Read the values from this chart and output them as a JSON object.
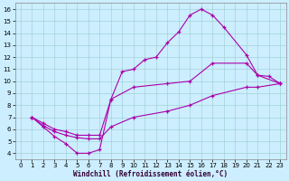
{
  "xlabel": "Windchill (Refroidissement éolien,°C)",
  "bg_color": "#cceeff",
  "line_color": "#aa00aa",
  "xlim": [
    -0.5,
    23.5
  ],
  "ylim": [
    3.5,
    16.5
  ],
  "xticks": [
    0,
    1,
    2,
    3,
    4,
    5,
    6,
    7,
    8,
    9,
    10,
    11,
    12,
    13,
    14,
    15,
    16,
    17,
    18,
    19,
    20,
    21,
    22,
    23
  ],
  "yticks": [
    4,
    5,
    6,
    7,
    8,
    9,
    10,
    11,
    12,
    13,
    14,
    15,
    16
  ],
  "line1_x": [
    1,
    2,
    3,
    4,
    5,
    6,
    7,
    8,
    9,
    10,
    11,
    12,
    13,
    14,
    15,
    16,
    17,
    18,
    20,
    21,
    22,
    23
  ],
  "line1_y": [
    7.0,
    6.2,
    5.4,
    4.8,
    4.0,
    4.0,
    4.3,
    8.5,
    10.8,
    11.0,
    11.8,
    12.0,
    13.2,
    14.1,
    15.5,
    16.0,
    15.5,
    14.5,
    12.2,
    10.5,
    10.4,
    9.8
  ],
  "line2_x": [
    1,
    2,
    3,
    4,
    5,
    6,
    7,
    8,
    10,
    13,
    15,
    17,
    20,
    21,
    23
  ],
  "line2_y": [
    7.0,
    6.5,
    6.0,
    5.8,
    5.5,
    5.5,
    5.5,
    8.5,
    9.5,
    9.8,
    10.0,
    11.5,
    11.5,
    10.5,
    9.8
  ],
  "line3_x": [
    1,
    2,
    3,
    4,
    5,
    6,
    7,
    8,
    10,
    13,
    15,
    17,
    20,
    21,
    23
  ],
  "line3_y": [
    7.0,
    6.3,
    5.8,
    5.5,
    5.3,
    5.2,
    5.2,
    6.2,
    7.0,
    7.5,
    8.0,
    8.8,
    9.5,
    9.5,
    9.8
  ]
}
